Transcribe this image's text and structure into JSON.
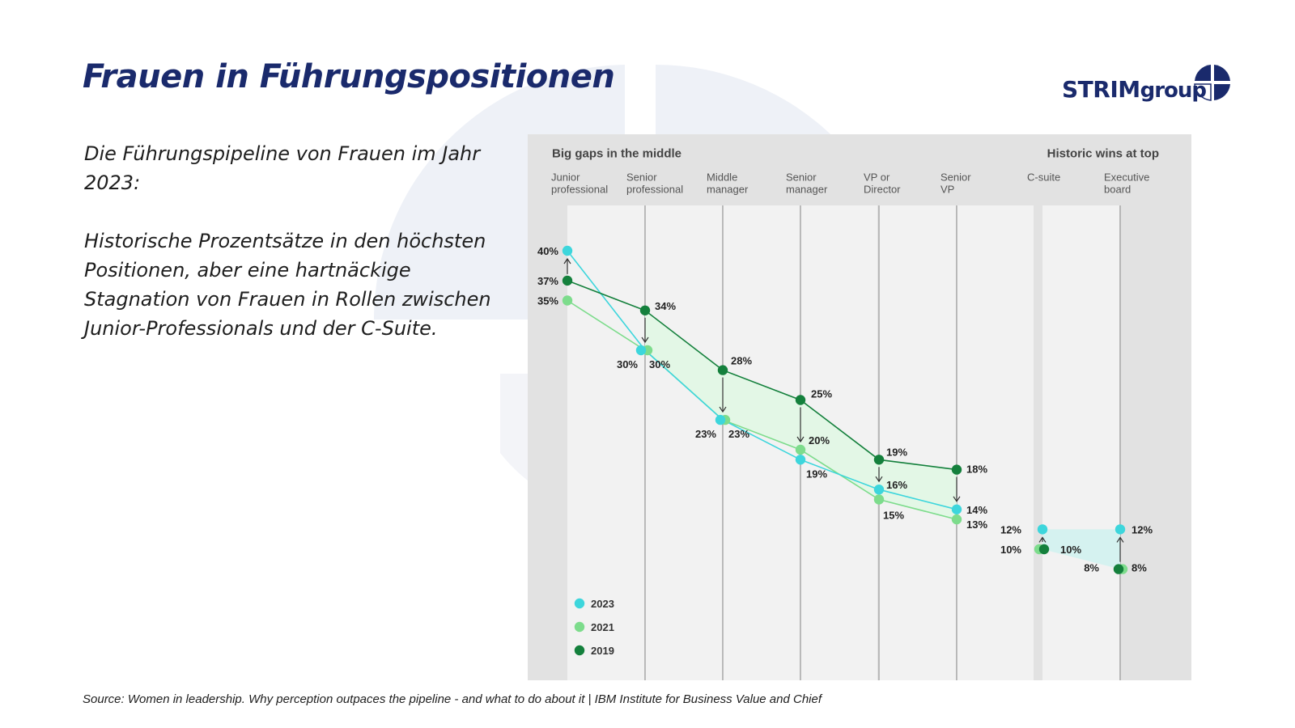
{
  "slide": {
    "title": "Frauen in Führungspositionen",
    "brand": {
      "main": "STRIM",
      "sub": "group"
    },
    "paragraphs": [
      "Die Führungspipeline von Frauen im Jahr 2023:",
      "Historische Prozentsätze in den höchsten Positionen, aber eine hartnäckige Stagnation von Frauen in Rollen zwischen Junior-Professionals und der C-Suite."
    ],
    "source": "Source: Women in leadership. Why perception outpaces the pipeline - and what to do about it | IBM Institute for Business Value and Chief"
  },
  "colors": {
    "title": "#1a2a6c",
    "c2023": "#3dd6dc",
    "c2021": "#7ddc8c",
    "c2019": "#14803c",
    "chart_bg": "#e2e2e2",
    "column_bg": "#f2f2f2",
    "band_middle": "#e3f7e6",
    "band_top": "#d5f2f0"
  },
  "chart_data": {
    "type": "line",
    "section_titles": [
      "Big gaps in the middle",
      "Historic wins at top"
    ],
    "categories": [
      [
        "Junior",
        "professional"
      ],
      [
        "Senior",
        "professional"
      ],
      [
        "Middle",
        "manager"
      ],
      [
        "Senior",
        "manager"
      ],
      [
        "VP or",
        "Director"
      ],
      [
        "Senior",
        "VP"
      ],
      [
        "C-suite"
      ],
      [
        "Executive",
        "board"
      ]
    ],
    "series": [
      {
        "name": "2023",
        "values": [
          40,
          30,
          23,
          19,
          16,
          14,
          12,
          12
        ]
      },
      {
        "name": "2021",
        "values": [
          35,
          30,
          23,
          20,
          15,
          13,
          10,
          8
        ]
      },
      {
        "name": "2019",
        "values": [
          37,
          34,
          28,
          25,
          19,
          18,
          10,
          8
        ]
      }
    ],
    "value_format": "%",
    "ylim": [
      8,
      40
    ],
    "legend_position": "bottom-left",
    "grid": false
  }
}
